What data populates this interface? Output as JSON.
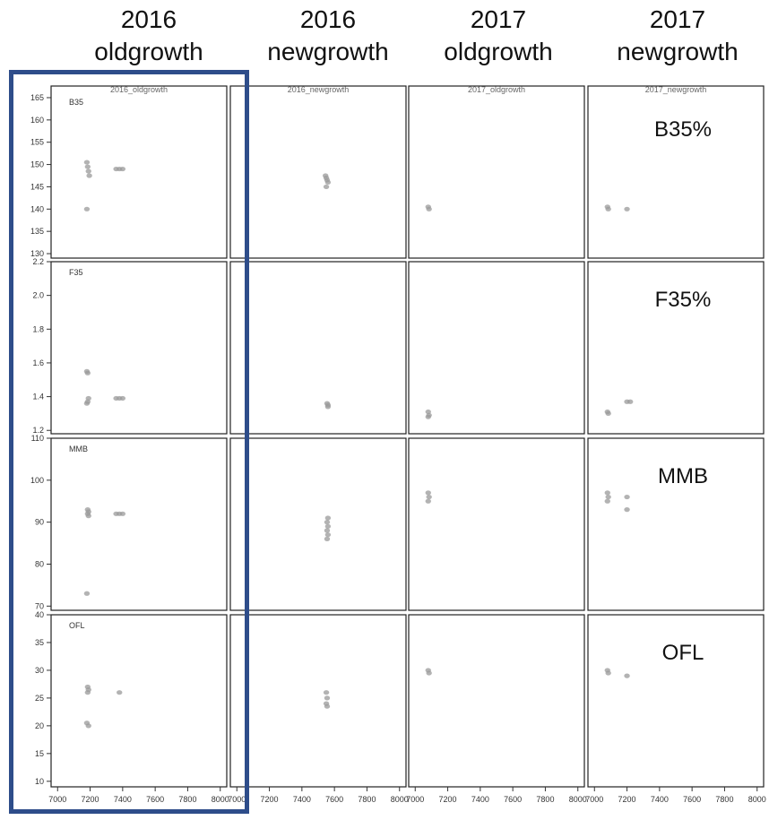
{
  "column_headers": [
    {
      "line1": "2016",
      "line2": "oldgrowth"
    },
    {
      "line1": "2016",
      "line2": "newgrowth"
    },
    {
      "line1": "2017",
      "line2": "oldgrowth"
    },
    {
      "line1": "2017",
      "line2": "newgrowth"
    }
  ],
  "chart_data": {
    "type": "scatter",
    "panel_strips": [
      "2016_oldgrowth",
      "2016_newgrowth",
      "2017_oldgrowth",
      "2017_newgrowth"
    ],
    "x_ticks": [
      7000,
      7200,
      7400,
      7600,
      7800,
      8000
    ],
    "xlim": [
      6960,
      8040
    ],
    "highlight_color": "#2e4d8a",
    "rows": [
      {
        "inner_label": "B35",
        "outer_label": "B35%",
        "ylim": [
          129,
          166
        ],
        "y_ticks": [
          130,
          135,
          140,
          145,
          150,
          155,
          160,
          165
        ],
        "series": [
          {
            "panel": "2016_oldgrowth",
            "x": [
              7180,
              7185,
              7190,
              7195,
              7180,
              7360,
              7380,
              7400
            ],
            "y": [
              150.5,
              149.5,
              148.5,
              147.5,
              140,
              149,
              149,
              149
            ]
          },
          {
            "panel": "2016_newgrowth",
            "x": [
              7545,
              7550,
              7555,
              7560,
              7550
            ],
            "y": [
              147.5,
              147,
              146.5,
              146,
              145
            ]
          },
          {
            "panel": "2017_oldgrowth",
            "x": [
              7080,
              7085
            ],
            "y": [
              140.5,
              140
            ]
          },
          {
            "panel": "2017_newgrowth",
            "x": [
              7080,
              7085,
              7200
            ],
            "y": [
              140.5,
              140,
              140
            ]
          }
        ]
      },
      {
        "inner_label": "F35",
        "outer_label": "F35%",
        "ylim": [
          1.18,
          2.2
        ],
        "y_ticks": [
          1.2,
          1.4,
          1.6,
          1.8,
          2.0,
          2.2
        ],
        "series": [
          {
            "panel": "2016_oldgrowth",
            "x": [
              7180,
              7185,
              7190,
              7185,
              7180,
              7360,
              7380,
              7400
            ],
            "y": [
              1.55,
              1.54,
              1.39,
              1.37,
              1.36,
              1.39,
              1.39,
              1.39
            ]
          },
          {
            "panel": "2016_newgrowth",
            "x": [
              7555,
              7560,
              7560
            ],
            "y": [
              1.36,
              1.35,
              1.34
            ]
          },
          {
            "panel": "2017_oldgrowth",
            "x": [
              7080,
              7085,
              7080
            ],
            "y": [
              1.31,
              1.29,
              1.28
            ]
          },
          {
            "panel": "2017_newgrowth",
            "x": [
              7080,
              7085,
              7200,
              7220
            ],
            "y": [
              1.31,
              1.3,
              1.37,
              1.37
            ]
          }
        ]
      },
      {
        "inner_label": "MMB",
        "outer_label": "MMB",
        "ylim": [
          69,
          110
        ],
        "y_ticks": [
          70,
          80,
          90,
          100,
          110
        ],
        "series": [
          {
            "panel": "2016_oldgrowth",
            "x": [
              7185,
              7190,
              7185,
              7190,
              7180,
              7360,
              7380,
              7400
            ],
            "y": [
              93,
              92.5,
              92,
              91.5,
              73,
              92,
              92,
              92
            ]
          },
          {
            "panel": "2016_newgrowth",
            "x": [
              7560,
              7555,
              7560,
              7555,
              7560,
              7555
            ],
            "y": [
              91,
              90,
              89,
              88,
              87,
              86
            ]
          },
          {
            "panel": "2017_oldgrowth",
            "x": [
              7080,
              7085,
              7080
            ],
            "y": [
              97,
              96,
              95
            ]
          },
          {
            "panel": "2017_newgrowth",
            "x": [
              7080,
              7085,
              7080,
              7200,
              7200
            ],
            "y": [
              97,
              96,
              95,
              96,
              93
            ]
          }
        ]
      },
      {
        "inner_label": "OFL",
        "outer_label": "OFL",
        "ylim": [
          9,
          40
        ],
        "y_ticks": [
          10,
          15,
          20,
          25,
          30,
          35,
          40
        ],
        "series": [
          {
            "panel": "2016_oldgrowth",
            "x": [
              7185,
              7190,
              7185,
              7180,
              7190,
              7380
            ],
            "y": [
              27,
              26.5,
              26,
              20.5,
              20,
              26
            ]
          },
          {
            "panel": "2016_newgrowth",
            "x": [
              7550,
              7555,
              7550,
              7555
            ],
            "y": [
              26,
              25,
              24,
              23.5
            ]
          },
          {
            "panel": "2017_oldgrowth",
            "x": [
              7080,
              7085
            ],
            "y": [
              30,
              29.5
            ]
          },
          {
            "panel": "2017_newgrowth",
            "x": [
              7080,
              7085,
              7200
            ],
            "y": [
              30,
              29.5,
              29
            ]
          }
        ]
      }
    ]
  }
}
